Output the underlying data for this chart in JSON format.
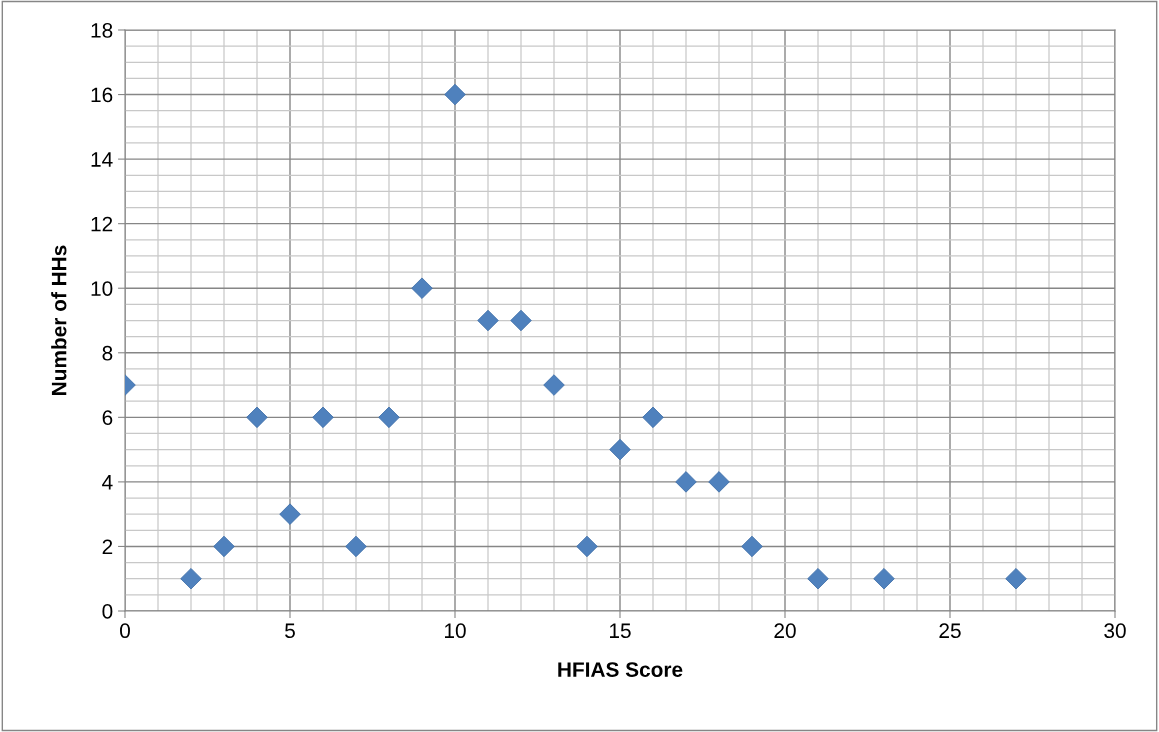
{
  "chart_data": {
    "type": "scatter",
    "xlabel": "HFIAS Score",
    "ylabel": "Number of HHs",
    "x": [
      0,
      2,
      3,
      4,
      5,
      6,
      7,
      8,
      9,
      10,
      11,
      12,
      13,
      14,
      15,
      16,
      17,
      18,
      19,
      21,
      23,
      27
    ],
    "series": [
      {
        "color": "#4f81bd",
        "values": [
          7,
          1,
          2,
          6,
          3,
          6,
          2,
          6,
          10,
          16,
          9,
          9,
          7,
          2,
          5,
          6,
          4,
          4,
          2,
          1,
          1,
          1
        ]
      }
    ],
    "xlim": [
      0,
      30
    ],
    "xticks": [
      0,
      5,
      10,
      15,
      20,
      25,
      30
    ],
    "ylim": [
      0,
      18
    ],
    "yticks": [
      0,
      2,
      4,
      6,
      8,
      10,
      12,
      14,
      16,
      18
    ],
    "grid": true,
    "marker": "diamond",
    "legend": false
  }
}
